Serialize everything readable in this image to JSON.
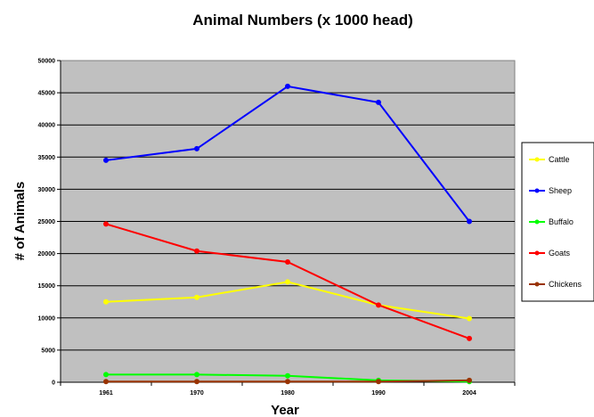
{
  "chart_data": {
    "type": "line",
    "title": "Animal Numbers (x 1000 head)",
    "xlabel": "Year",
    "ylabel": "# of Animals",
    "categories": [
      "1961",
      "1970",
      "1980",
      "1990",
      "2004"
    ],
    "ylim": [
      0,
      50000
    ],
    "yticks": [
      "0",
      "5000",
      "10000",
      "15000",
      "20000",
      "25000",
      "30000",
      "35000",
      "40000",
      "45000",
      "50000"
    ],
    "grid": true,
    "legend_position": "right",
    "plot_background": "#c0c0c0",
    "series": [
      {
        "name": "Cattle",
        "color": "#ffff00",
        "values": [
          12500,
          13200,
          15600,
          12000,
          9900
        ]
      },
      {
        "name": "Sheep",
        "color": "#0000ff",
        "values": [
          34500,
          36300,
          46000,
          43500,
          25000
        ]
      },
      {
        "name": "Buffalo",
        "color": "#00ff00",
        "values": [
          1200,
          1200,
          1000,
          300,
          100
        ]
      },
      {
        "name": "Goats",
        "color": "#ff0000",
        "values": [
          24600,
          20400,
          18700,
          12000,
          6800
        ]
      },
      {
        "name": "Chickens",
        "color": "#993300",
        "values": [
          100,
          100,
          100,
          100,
          300
        ]
      }
    ]
  }
}
